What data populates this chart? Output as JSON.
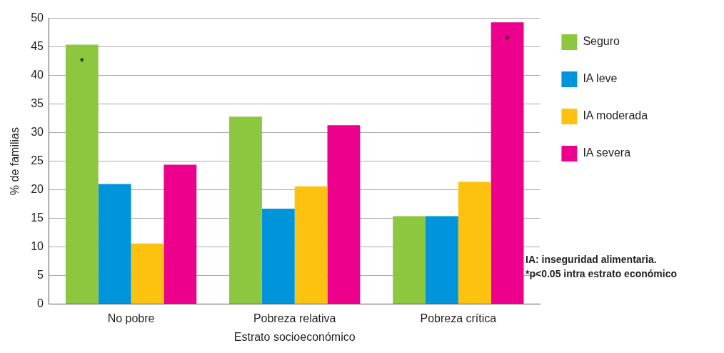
{
  "chart_data": {
    "type": "bar",
    "xlabel": "Estrato socioeconómico",
    "ylabel": "% de familias",
    "categories": [
      "No pobre",
      "Pobreza relativa",
      "Pobreza crítica"
    ],
    "series": [
      {
        "name": "Seguro",
        "color": "#8dc63f",
        "values": [
          45.4,
          32.8,
          15.4
        ],
        "value_labels": [
          "*",
          null,
          null
        ]
      },
      {
        "name": "IA leve",
        "color": "#0095da",
        "values": [
          21.0,
          16.7,
          15.4
        ]
      },
      {
        "name": "IA moderada",
        "color": "#fdc110",
        "values": [
          10.6,
          20.6,
          21.4
        ]
      },
      {
        "name": "IA severa",
        "color": "#ec008c",
        "values": [
          24.4,
          31.3,
          49.3
        ],
        "value_labels": [
          null,
          null,
          "*"
        ]
      }
    ],
    "ylim": [
      0,
      50
    ],
    "yticks": [
      0,
      5,
      10,
      15,
      20,
      25,
      30,
      35,
      40,
      45,
      50
    ],
    "grid": "y",
    "legend": "top right",
    "annotations": [
      "IA: inseguridad alimentaria.",
      "*p<0.05 intra estrato económico"
    ]
  }
}
